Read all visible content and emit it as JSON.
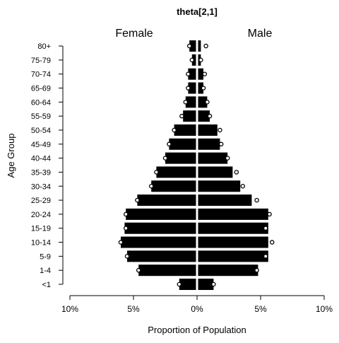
{
  "chart_data": {
    "type": "bar",
    "title": "theta[2,1]",
    "xlabel": "Proportion of Population",
    "ylabel": "Age Group",
    "panel_labels": {
      "left": "Female",
      "right": "Male"
    },
    "x_tick_labels": [
      "10%",
      "5%",
      "0%",
      "5%",
      "10%"
    ],
    "x_tick_values": [
      -10,
      -5,
      0,
      5,
      10
    ],
    "xlim": [
      -10,
      10
    ],
    "categories": [
      "<1",
      "1-4",
      "5-9",
      "10-14",
      "15-19",
      "20-24",
      "25-29",
      "30-34",
      "35-39",
      "40-44",
      "45-49",
      "50-54",
      "55-59",
      "60-64",
      "65-69",
      "70-74",
      "75-79",
      "80+"
    ],
    "series": [
      {
        "name": "Female",
        "values": [
          1.4,
          4.6,
          5.5,
          6.0,
          5.7,
          5.6,
          4.7,
          3.6,
          3.2,
          2.5,
          2.2,
          1.8,
          1.1,
          0.9,
          0.7,
          0.7,
          0.4,
          0.6
        ],
        "estimates": [
          1.4,
          4.6,
          5.5,
          6.0,
          5.6,
          5.6,
          4.7,
          3.6,
          3.2,
          2.5,
          2.2,
          1.8,
          1.2,
          0.9,
          0.7,
          0.7,
          0.4,
          0.6
        ]
      },
      {
        "name": "Male",
        "values": [
          1.3,
          4.8,
          5.6,
          5.6,
          5.6,
          5.6,
          4.3,
          3.4,
          2.8,
          2.4,
          1.8,
          1.6,
          1.0,
          0.8,
          0.5,
          0.5,
          0.3,
          0.3
        ],
        "estimates": [
          1.3,
          4.7,
          5.4,
          5.9,
          5.4,
          5.7,
          4.7,
          3.6,
          3.1,
          2.4,
          1.9,
          1.8,
          1.0,
          0.8,
          0.5,
          0.6,
          0.3,
          0.7
        ]
      }
    ],
    "colors": {
      "bar": "#000000",
      "marker": "#000000",
      "background": "#ffffff"
    },
    "grid": false,
    "legend": "none"
  }
}
